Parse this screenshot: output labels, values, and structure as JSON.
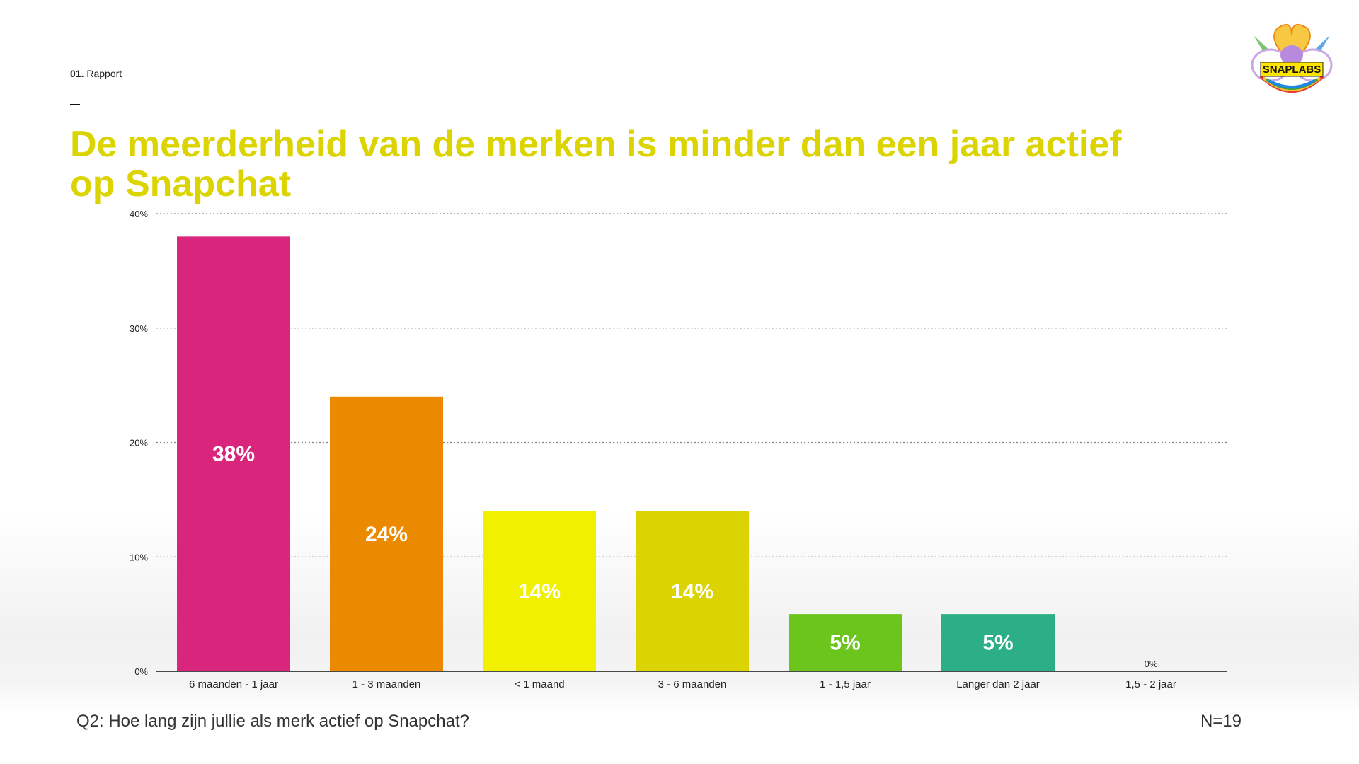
{
  "header": {
    "section_number": "01.",
    "section_label": "Rapport",
    "title": "De meerderheid van de merken is minder dan een jaar actief op Snapchat",
    "title_color": "#dcd400",
    "logo_text": "SNAPLABS"
  },
  "chart_data": {
    "type": "bar",
    "title": "De meerderheid van de merken is minder dan een jaar actief op Snapchat",
    "xlabel": "",
    "ylabel": "",
    "ylim": [
      0,
      40
    ],
    "yticks": [
      0,
      10,
      20,
      30,
      40
    ],
    "ytick_labels": [
      "0%",
      "10%",
      "20%",
      "30%",
      "40%"
    ],
    "grid": true,
    "categories": [
      "6 maanden - 1 jaar",
      "1 - 3 maanden",
      "< 1 maand",
      "3 - 6 maanden",
      "1 - 1,5 jaar",
      "Langer dan 2 jaar",
      "1,5 - 2 jaar"
    ],
    "values": [
      38,
      24,
      14,
      14,
      5,
      5,
      0
    ],
    "data_labels": [
      "38%",
      "24%",
      "14%",
      "14%",
      "5%",
      "5%",
      "0%"
    ],
    "colors": [
      "#d9267c",
      "#eb8a00",
      "#f0f000",
      "#dcd400",
      "#6cc51c",
      "#2daf86",
      "#999999"
    ]
  },
  "footer": {
    "question": "Q2: Hoe lang zijn jullie als merk actief op Snapchat?",
    "sample_size": "N=19"
  }
}
